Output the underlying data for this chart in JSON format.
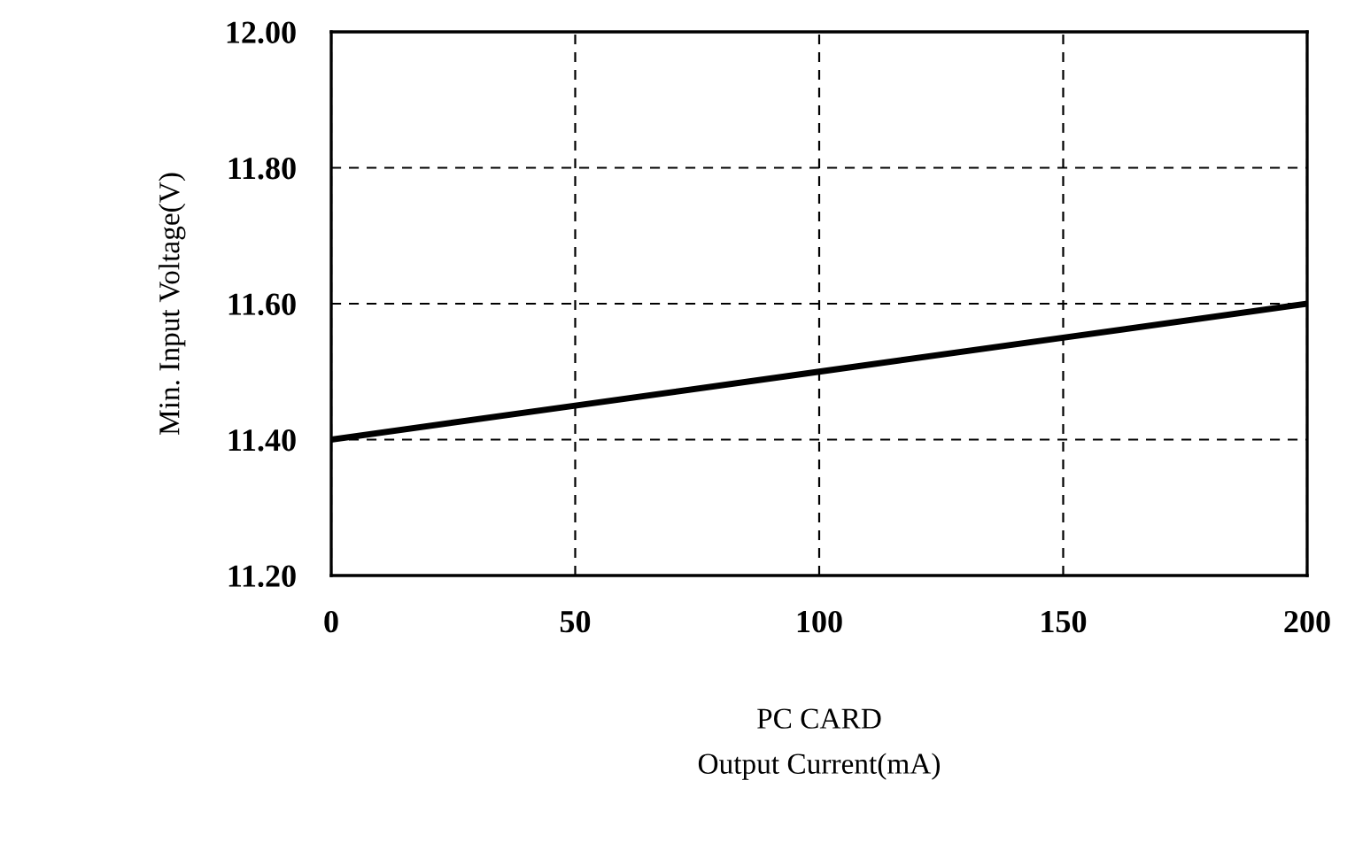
{
  "chart_data": {
    "type": "line",
    "xlabel": "PC CARD\nOutput Current(mA)",
    "ylabel": "Min. Input Voltage(V)",
    "x": [
      0,
      50,
      100,
      150,
      200
    ],
    "series": [
      {
        "color": "#000000",
        "values": [
          11.4,
          11.45,
          11.5,
          11.55,
          11.6
        ]
      }
    ],
    "xlim": [
      0,
      200
    ],
    "xticks": [
      0,
      50,
      100,
      150,
      200
    ],
    "ylim": [
      11.2,
      12.0
    ],
    "yticks": [
      {
        "value": 11.2,
        "label": "11.20"
      },
      {
        "value": 11.4,
        "label": "11.40"
      },
      {
        "value": 11.6,
        "label": "11.60"
      },
      {
        "value": 11.8,
        "label": "11.80"
      },
      {
        "value": 12.0,
        "label": "12.00"
      }
    ],
    "grid": true,
    "line_style": "solid"
  }
}
